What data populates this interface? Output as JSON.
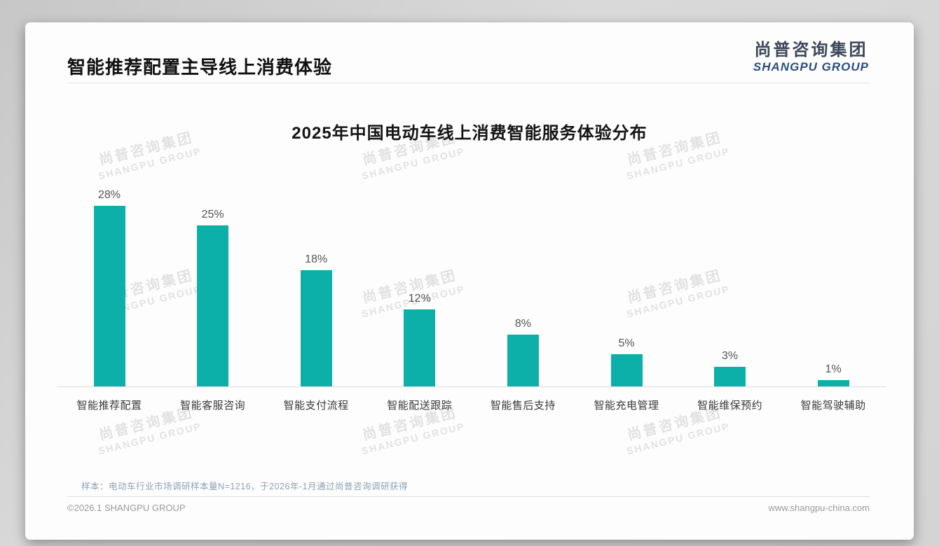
{
  "slide": {
    "title": "智能推荐配置主导线上消费体验",
    "logo": {
      "cn": "尚普咨询集团",
      "en": "SHANGPU GROUP"
    },
    "watermark": {
      "cn": "尚普咨询集团",
      "en": "SHANGPU GROUP"
    },
    "footnote": "样本：电动车行业市场调研样本量N=1216，于2026年-1月通过尚普咨询调研获得",
    "footer_left": "©2026.1 SHANGPU GROUP",
    "footer_right": "www.shangpu-china.com"
  },
  "colors": {
    "bar": "#0cb0a8",
    "logo_cn": "#3c4859",
    "logo_en": "#2b4e7f",
    "footnote": "#8fa0b4"
  },
  "chart_data": {
    "type": "bar",
    "title": "2025年中国电动车线上消费智能服务体验分布",
    "categories": [
      "智能推荐配置",
      "智能客服咨询",
      "智能支付流程",
      "智能配送跟踪",
      "智能售后支持",
      "智能充电管理",
      "智能维保预约",
      "智能驾驶辅助"
    ],
    "values": [
      28,
      25,
      18,
      12,
      8,
      5,
      3,
      1
    ],
    "data_labels": [
      "28%",
      "25%",
      "18%",
      "12%",
      "8%",
      "5%",
      "3%",
      "1%"
    ],
    "unit": "%",
    "xlabel": "",
    "ylabel": "",
    "ylim": [
      0,
      30
    ],
    "grid": false,
    "legend": false,
    "bar_color": "#0cb0a8"
  }
}
